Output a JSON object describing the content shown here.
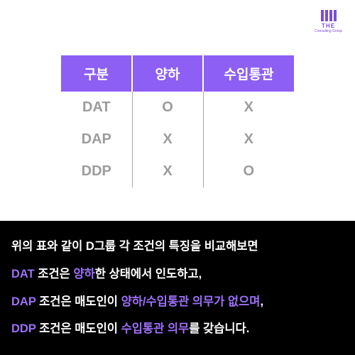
{
  "logo": {
    "main": "THE",
    "sub": "Consulting Group"
  },
  "table": {
    "headers": [
      "구분",
      "양하",
      "수입통관"
    ],
    "rows": [
      [
        "DAT",
        "O",
        "X"
      ],
      [
        "DAP",
        "X",
        "X"
      ],
      [
        "DDP",
        "X",
        "O"
      ]
    ],
    "header_bg": "#8d5ff5",
    "cell_color": "#9c9c9c"
  },
  "desc": {
    "line1_a": "위의 표와 같이 D그룹 각 조건의 특징을 비교해보면",
    "line2_hl1": "DAT",
    "line2_a": " 조건은 ",
    "line2_hl2": "양하",
    "line2_b": "한 상태에서 인도하고,",
    "line3_hl1": "DAP",
    "line3_a": " 조건은 매도인이 ",
    "line3_hl2": "양하/수입통관 의무가 없으며",
    "line3_b": ",",
    "line4_hl1": "DDP",
    "line4_a": " 조건은 매도인이 ",
    "line4_hl2": "수입통관 의무",
    "line4_b": "를 갖습니다."
  }
}
